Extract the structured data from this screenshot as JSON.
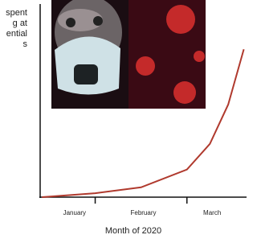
{
  "chart_data": {
    "type": "line",
    "y_label_lines": [
      "spent",
      "g at",
      "ential",
      "s"
    ],
    "x_label": "Month of 2020",
    "categories": [
      "January",
      "February",
      "March"
    ],
    "x": [
      0.42,
      1,
      1.5,
      2,
      2.25,
      2.45,
      2.62
    ],
    "values": [
      0,
      2,
      5,
      14,
      27,
      47,
      75
    ],
    "color": "#b03a2e",
    "xlim": [
      0.4,
      2.65
    ],
    "ylim": [
      0,
      100
    ],
    "xticks": [
      1,
      2
    ]
  }
}
